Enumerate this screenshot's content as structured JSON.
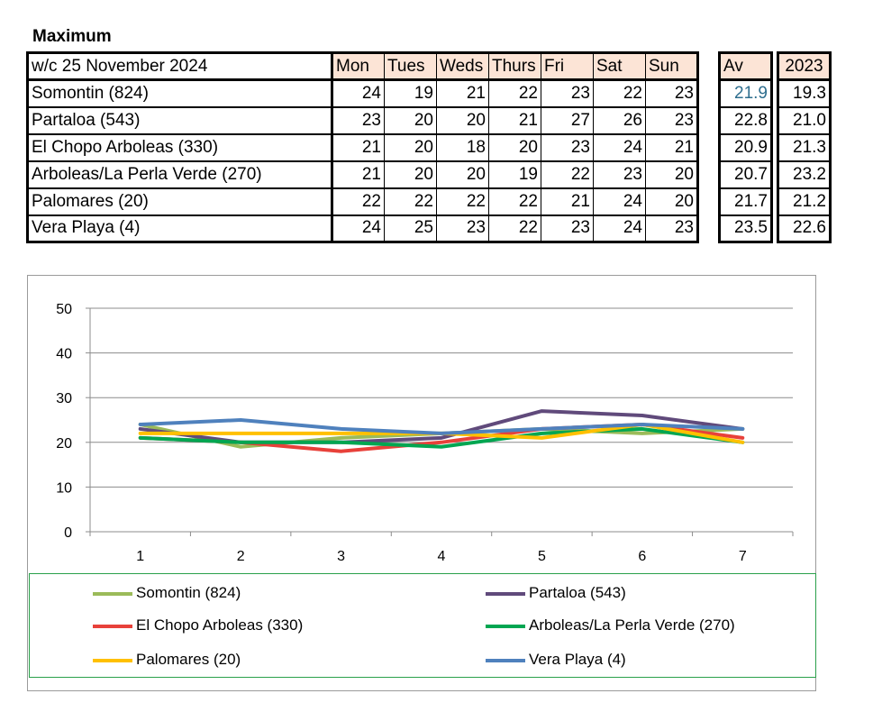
{
  "heading": "Maximum",
  "table": {
    "header_label": "w/c 25 November 2024",
    "days": [
      "Mon",
      "Tues",
      "Weds",
      "Thurs",
      "Fri",
      "Sat",
      "Sun"
    ],
    "av_header": "Av",
    "year_header": "2023",
    "rows": [
      {
        "name": "Somontin (824)",
        "values": [
          "24",
          "19",
          "21",
          "22",
          "23",
          "22",
          "23"
        ],
        "av": "21.9",
        "prev": "19.3"
      },
      {
        "name": "Partaloa (543)",
        "values": [
          "23",
          "20",
          "20",
          "21",
          "27",
          "26",
          "23"
        ],
        "av": "22.8",
        "prev": "21.0"
      },
      {
        "name": "El Chopo  Arboleas (330)",
        "values": [
          "21",
          "20",
          "18",
          "20",
          "23",
          "24",
          "21"
        ],
        "av": "20.9",
        "prev": "21.3"
      },
      {
        "name": "Arboleas/La Perla Verde (270)",
        "values": [
          "21",
          "20",
          "20",
          "19",
          "22",
          "23",
          "20"
        ],
        "av": "20.7",
        "prev": "23.2"
      },
      {
        "name": "Palomares (20)",
        "values": [
          "22",
          "22",
          "22",
          "22",
          "21",
          "24",
          "20"
        ],
        "av": "21.7",
        "prev": "21.2"
      },
      {
        "name": "Vera Playa (4)",
        "values": [
          "24",
          "25",
          "23",
          "22",
          "23",
          "24",
          "23"
        ],
        "av": "23.5",
        "prev": "22.6"
      }
    ]
  },
  "chart_data": {
    "type": "line",
    "x": [
      1,
      2,
      3,
      4,
      5,
      6,
      7
    ],
    "x_tick_labels": [
      "1",
      "2",
      "3",
      "4",
      "5",
      "6",
      "7"
    ],
    "y_ticks": [
      "0",
      "10",
      "20",
      "30",
      "40",
      "50"
    ],
    "ylim": [
      0,
      50
    ],
    "grid": "horizontal",
    "legend_position": "bottom",
    "series": [
      {
        "name": "Somontin (824)",
        "color": "#9bbb59",
        "values": [
          24,
          19,
          21,
          22,
          23,
          22,
          23
        ]
      },
      {
        "name": "Partaloa (543)",
        "color": "#604a7b",
        "values": [
          23,
          20,
          20,
          21,
          27,
          26,
          23
        ]
      },
      {
        "name": "El Chopo  Arboleas (330)",
        "color": "#e8413a",
        "values": [
          21,
          20,
          18,
          20,
          23,
          24,
          21
        ]
      },
      {
        "name": "Arboleas/La Perla Verde (270)",
        "color": "#00a651",
        "values": [
          21,
          20,
          20,
          19,
          22,
          23,
          20
        ]
      },
      {
        "name": "Palomares (20)",
        "color": "#ffc000",
        "values": [
          22,
          22,
          22,
          22,
          21,
          24,
          20
        ]
      },
      {
        "name": "Vera Playa (4)",
        "color": "#4f81bd",
        "values": [
          24,
          25,
          23,
          22,
          23,
          24,
          23
        ]
      }
    ]
  }
}
